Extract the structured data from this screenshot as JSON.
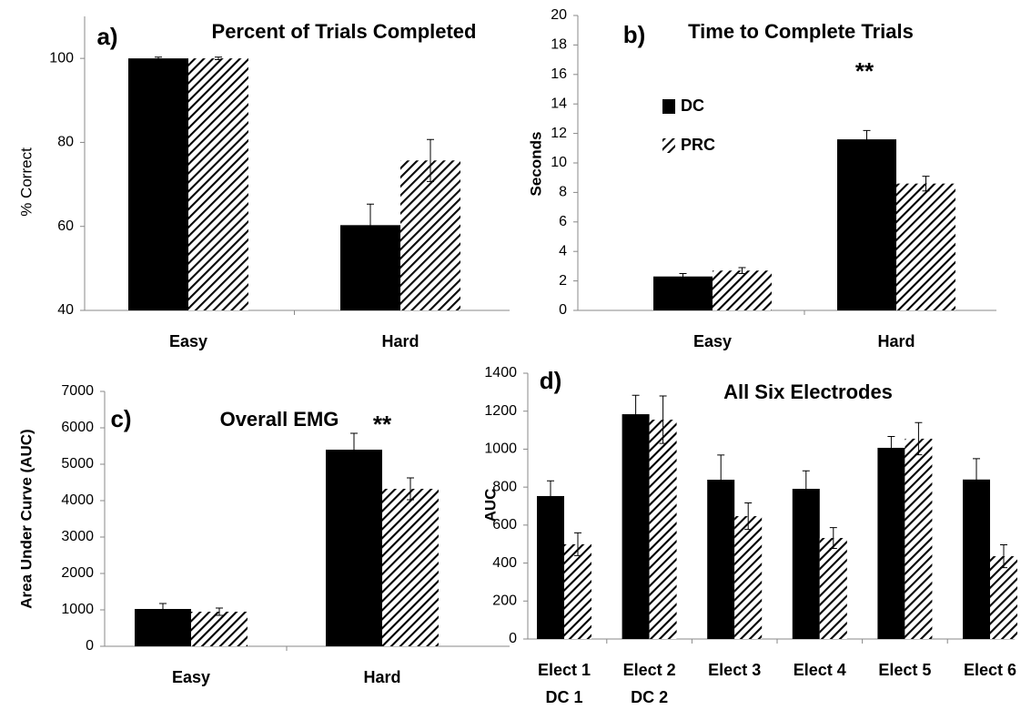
{
  "chart_data": [
    {
      "type": "bar",
      "panel_label": "a)",
      "title": "Percent of Trials Completed",
      "ylabel": "% Correct",
      "categories": [
        "Easy",
        "Hard"
      ],
      "ylim": [
        40,
        110
      ],
      "yticks": [
        40,
        60,
        80,
        100
      ],
      "legend": false,
      "series": [
        {
          "color": "#000000",
          "pattern": "solid",
          "values": [
            100,
            60.3
          ],
          "errors": [
            0.3,
            5
          ]
        },
        {
          "color": "#000000",
          "pattern": "hatch",
          "values": [
            100,
            75.7
          ],
          "errors": [
            0.3,
            5
          ]
        }
      ]
    },
    {
      "type": "bar",
      "panel_label": "b)",
      "title": "Time to Complete Trials",
      "ylabel": "Seconds",
      "categories": [
        "Easy",
        "Hard"
      ],
      "ylim": [
        0,
        20
      ],
      "yticks": [
        0,
        2,
        4,
        6,
        8,
        10,
        12,
        14,
        16,
        18,
        20
      ],
      "legend": true,
      "annotation": "**",
      "series": [
        {
          "name": "DC",
          "color": "#000000",
          "pattern": "solid",
          "values": [
            2.3,
            11.6
          ],
          "errors": [
            0.2,
            0.6
          ]
        },
        {
          "name": "PRC",
          "color": "#000000",
          "pattern": "hatch",
          "values": [
            2.7,
            8.6
          ],
          "errors": [
            0.2,
            0.5
          ]
        }
      ]
    },
    {
      "type": "bar",
      "panel_label": "c)",
      "title": "Overall EMG",
      "ylabel": "Area Under Curve (AUC)",
      "categories": [
        "Easy",
        "Hard"
      ],
      "ylim": [
        0,
        7000
      ],
      "yticks": [
        0,
        1000,
        2000,
        3000,
        4000,
        5000,
        6000,
        7000
      ],
      "legend": false,
      "annotation": "**",
      "series": [
        {
          "color": "#000000",
          "pattern": "solid",
          "values": [
            1025,
            5400
          ],
          "errors": [
            150,
            450
          ]
        },
        {
          "color": "#000000",
          "pattern": "hatch",
          "values": [
            950,
            4325
          ],
          "errors": [
            100,
            300
          ]
        }
      ]
    },
    {
      "type": "bar",
      "panel_label": "d)",
      "title": "All Six Electrodes",
      "ylabel": "AUC",
      "categories": [
        "Elect 1",
        "Elect 2",
        "Elect 3",
        "Elect 4",
        "Elect 5",
        "Elect 6"
      ],
      "category_sublabels": [
        "DC 1",
        "DC 2",
        null,
        null,
        null,
        null
      ],
      "ylim": [
        0,
        1400
      ],
      "yticks": [
        0,
        200,
        400,
        600,
        800,
        1000,
        1200,
        1400
      ],
      "legend": false,
      "series": [
        {
          "color": "#000000",
          "pattern": "solid",
          "values": [
            753,
            1184,
            839,
            791,
            1007,
            840
          ],
          "errors": [
            80,
            100,
            130,
            95,
            60,
            110
          ]
        },
        {
          "color": "#000000",
          "pattern": "hatch",
          "values": [
            499,
            1155,
            647,
            532,
            1055,
            436
          ],
          "errors": [
            60,
            125,
            70,
            55,
            85,
            60
          ]
        }
      ]
    }
  ]
}
